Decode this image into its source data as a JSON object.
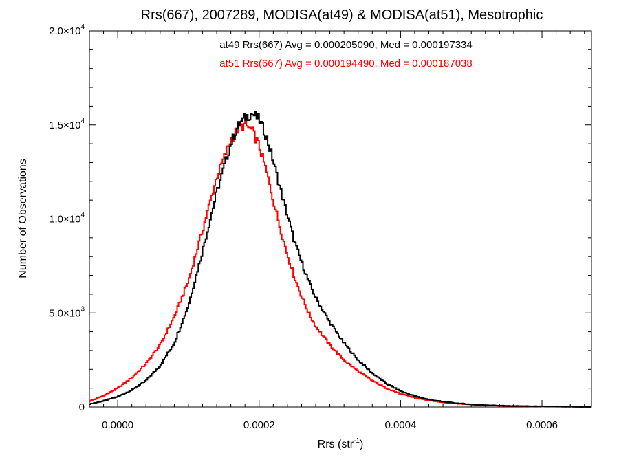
{
  "chart_data": {
    "type": "line",
    "title": "Rrs(667), 2007289, MODISA(at49) & MODISA(at51), Mesotrophic",
    "xlabel_main": "Rrs (str",
    "xlabel_sup": "-1",
    "xlabel_close": ")",
    "ylabel": "Number of Observations",
    "xlim": [
      -4e-05,
      0.00067
    ],
    "ylim": [
      0,
      20000
    ],
    "x_ticks": [
      {
        "value": 0.0,
        "label": "0.0000"
      },
      {
        "value": 0.0002,
        "label": "0.0002"
      },
      {
        "value": 0.0004,
        "label": "0.0004"
      },
      {
        "value": 0.0006,
        "label": "0.0006"
      }
    ],
    "y_ticks": [
      {
        "value": 0,
        "mantissa": "0",
        "exponent": ""
      },
      {
        "value": 5000,
        "mantissa": "5.0×10",
        "exponent": "3"
      },
      {
        "value": 10000,
        "mantissa": "1.0×10",
        "exponent": "4"
      },
      {
        "value": 15000,
        "mantissa": "1.5×10",
        "exponent": "4"
      },
      {
        "value": 20000,
        "mantissa": "2.0×10",
        "exponent": "4"
      }
    ],
    "grid": false,
    "annotations": [
      {
        "text": "at49 Rrs(667) Avg = 0.000205090, Med = 0.000197334",
        "color": "#000000"
      },
      {
        "text": "at51 Rrs(667) Avg = 0.000194490, Med = 0.000187038",
        "color": "#ff0000"
      }
    ],
    "series": [
      {
        "color": "#000000",
        "x": [
          -4e-05,
          -2e-05,
          0.0,
          2e-05,
          4e-05,
          6e-05,
          8e-05,
          0.0001,
          0.00012,
          0.00014,
          0.00016,
          0.00017,
          0.00018,
          0.00019,
          0.0002,
          0.00021,
          0.00022,
          0.00023,
          0.00024,
          0.00025,
          0.00026,
          0.00027,
          0.00028,
          0.0003,
          0.00032,
          0.00034,
          0.00036,
          0.00038,
          0.0004,
          0.00042,
          0.00044,
          0.00046,
          0.00048,
          0.0005,
          0.00052,
          0.00055,
          0.0006,
          0.00065,
          0.00067
        ],
        "y": [
          150,
          320,
          550,
          900,
          1400,
          2200,
          3400,
          5400,
          8300,
          11400,
          14000,
          14900,
          15400,
          15600,
          15300,
          14400,
          13100,
          11600,
          10200,
          8800,
          7700,
          6700,
          5800,
          4500,
          3400,
          2500,
          1800,
          1250,
          850,
          580,
          400,
          280,
          200,
          140,
          100,
          60,
          30,
          10,
          5
        ]
      },
      {
        "color": "#ff0000",
        "x": [
          -4e-05,
          -2e-05,
          0.0,
          2e-05,
          4e-05,
          6e-05,
          8e-05,
          0.0001,
          0.00012,
          0.00014,
          0.00016,
          0.00017,
          0.00018,
          0.00019,
          0.0002,
          0.00021,
          0.00022,
          0.00023,
          0.00024,
          0.00025,
          0.00026,
          0.00027,
          0.00028,
          0.0003,
          0.00032,
          0.00034,
          0.00036,
          0.00038,
          0.0004,
          0.00042,
          0.00044,
          0.00046,
          0.00048,
          0.0005,
          0.00052,
          0.00055,
          0.0006,
          0.00065,
          0.00067
        ],
        "y": [
          300,
          600,
          1000,
          1550,
          2300,
          3300,
          4800,
          6700,
          9400,
          12200,
          14200,
          14800,
          15000,
          14700,
          13900,
          12600,
          11000,
          9500,
          8100,
          6900,
          5900,
          5000,
          4300,
          3300,
          2500,
          1900,
          1400,
          1000,
          700,
          490,
          350,
          250,
          180,
          130,
          95,
          55,
          28,
          10,
          5
        ]
      }
    ]
  }
}
